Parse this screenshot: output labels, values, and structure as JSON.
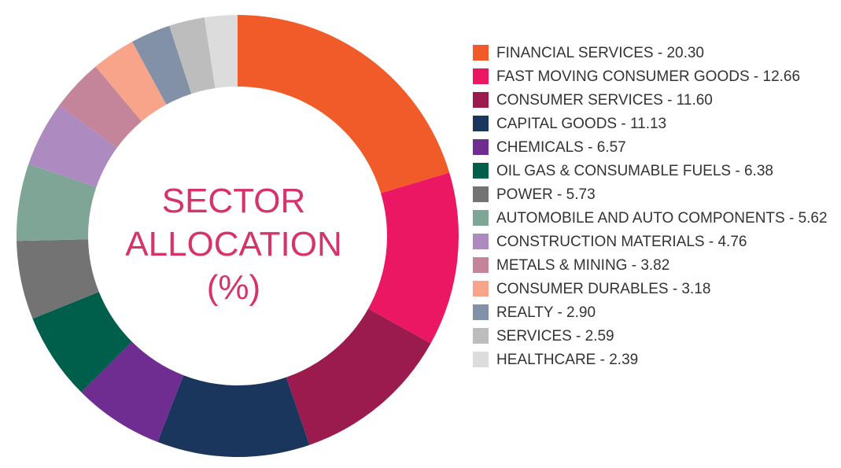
{
  "chart_data": {
    "type": "pie",
    "variant": "donut",
    "center_label": [
      "SECTOR",
      "ALLOCATION",
      "(%)"
    ],
    "legend_position": "right",
    "slices": [
      {
        "label": "FINANCIAL SERVICES - 20.30",
        "value": 20.3,
        "color": "#f15a29"
      },
      {
        "label": "FAST MOVING CONSUMER GOODS - 12.66",
        "value": 12.66,
        "color": "#ec1763"
      },
      {
        "label": "CONSUMER SERVICES - 11.60",
        "value": 11.6,
        "color": "#9b1b4f"
      },
      {
        "label": "CAPITAL GOODS - 11.13",
        "value": 11.13,
        "color": "#1b365d"
      },
      {
        "label": "CHEMICALS - 6.57",
        "value": 6.57,
        "color": "#6f2c91"
      },
      {
        "label": "OIL GAS & CONSUMABLE FUELS - 6.38",
        "value": 6.38,
        "color": "#005f4b"
      },
      {
        "label": "POWER - 5.73",
        "value": 5.73,
        "color": "#737373"
      },
      {
        "label": "AUTOMOBILE AND AUTO COMPONENTS - 5.62",
        "value": 5.62,
        "color": "#7fa597"
      },
      {
        "label": "CONSTRUCTION MATERIALS - 4.76",
        "value": 4.76,
        "color": "#ad8ac0"
      },
      {
        "label": "METALS & MINING - 3.82",
        "value": 3.82,
        "color": "#c4849a"
      },
      {
        "label": "CONSUMER DURABLES - 3.18",
        "value": 3.18,
        "color": "#f8a48a"
      },
      {
        "label": "REALTY - 2.90",
        "value": 2.9,
        "color": "#8291a7"
      },
      {
        "label": "SERVICES - 2.59",
        "value": 2.59,
        "color": "#bdbdbd"
      },
      {
        "label": "HEALTHCARE - 2.39",
        "value": 2.39,
        "color": "#dcdcdc"
      }
    ]
  }
}
